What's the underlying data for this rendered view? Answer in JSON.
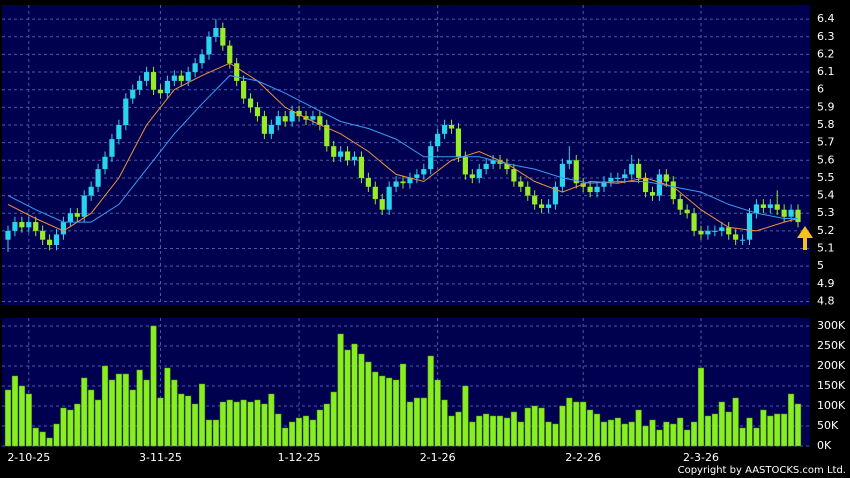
{
  "chart_data": [
    {
      "type": "candlestick",
      "categories": [
        null,
        null,
        null,
        "2-10-25",
        null,
        null,
        null,
        null,
        null,
        null,
        null,
        null,
        null,
        null,
        null,
        null,
        null,
        null,
        null,
        null,
        null,
        null,
        "3-11-25",
        null,
        null,
        null,
        null,
        null,
        null,
        null,
        null,
        null,
        null,
        null,
        null,
        null,
        null,
        null,
        null,
        null,
        null,
        null,
        "1-12-25",
        null,
        null,
        null,
        null,
        null,
        null,
        null,
        null,
        null,
        null,
        null,
        null,
        null,
        null,
        null,
        null,
        null,
        null,
        null,
        "2-1-26",
        null,
        null,
        null,
        null,
        null,
        null,
        null,
        null,
        null,
        null,
        null,
        null,
        null,
        null,
        null,
        null,
        null,
        null,
        null,
        null,
        "2-2-26",
        null,
        null,
        null,
        null,
        null,
        null,
        null,
        null,
        null,
        null,
        null,
        null,
        null,
        null,
        null,
        null,
        "2-3-26",
        null,
        null,
        null,
        null,
        null,
        null,
        null,
        null,
        null,
        null,
        null,
        null,
        null,
        null
      ],
      "open": [
        5.15,
        5.2,
        5.25,
        5.22,
        5.25,
        5.2,
        5.15,
        5.12,
        5.18,
        5.25,
        5.3,
        5.28,
        5.4,
        5.45,
        5.55,
        5.62,
        5.72,
        5.8,
        5.95,
        6.0,
        6.05,
        6.1,
        6.0,
        5.98,
        6.05,
        6.08,
        6.05,
        6.1,
        6.15,
        6.2,
        6.3,
        6.35,
        6.25,
        6.15,
        6.05,
        5.95,
        5.9,
        5.85,
        5.75,
        5.8,
        5.85,
        5.82,
        5.88,
        5.85,
        5.83,
        5.85,
        5.8,
        5.68,
        5.62,
        5.65,
        5.6,
        5.62,
        5.5,
        5.45,
        5.38,
        5.32,
        5.45,
        5.48,
        5.47,
        5.5,
        5.52,
        5.55,
        5.68,
        5.75,
        5.8,
        5.78,
        5.62,
        5.52,
        5.5,
        5.55,
        5.58,
        5.6,
        5.58,
        5.55,
        5.48,
        5.45,
        5.4,
        5.35,
        5.33,
        5.35,
        5.45,
        5.58,
        5.6,
        5.47,
        5.45,
        5.42,
        5.45,
        5.48,
        5.5,
        5.5,
        5.52,
        5.58,
        5.5,
        5.42,
        5.4,
        5.52,
        5.48,
        5.38,
        5.32,
        5.3,
        5.2,
        5.18,
        5.2,
        5.2,
        5.22,
        5.18,
        5.15,
        5.15,
        5.3,
        5.35,
        5.33,
        5.35,
        5.32,
        5.28,
        5.32
      ],
      "high": [
        5.23,
        5.28,
        5.28,
        5.28,
        5.28,
        5.23,
        5.18,
        5.21,
        5.28,
        5.33,
        5.33,
        5.43,
        5.48,
        5.58,
        5.65,
        5.75,
        5.83,
        5.98,
        6.03,
        6.08,
        6.13,
        6.13,
        6.03,
        6.08,
        6.11,
        6.11,
        6.13,
        6.18,
        6.23,
        6.33,
        6.4,
        6.38,
        6.28,
        6.18,
        6.08,
        5.98,
        5.93,
        5.88,
        5.83,
        5.88,
        5.88,
        5.91,
        5.91,
        5.88,
        5.88,
        5.88,
        5.83,
        5.71,
        5.68,
        5.68,
        5.65,
        5.65,
        5.53,
        5.48,
        5.41,
        5.48,
        5.51,
        5.51,
        5.53,
        5.55,
        5.58,
        5.71,
        5.78,
        5.83,
        5.83,
        5.81,
        5.65,
        5.55,
        5.58,
        5.61,
        5.63,
        5.63,
        5.61,
        5.58,
        5.51,
        5.48,
        5.43,
        5.38,
        5.38,
        5.48,
        5.61,
        5.68,
        5.63,
        5.5,
        5.48,
        5.48,
        5.51,
        5.53,
        5.53,
        5.55,
        5.63,
        5.61,
        5.53,
        5.45,
        5.55,
        5.55,
        5.51,
        5.41,
        5.35,
        5.33,
        5.23,
        5.23,
        5.23,
        5.25,
        5.25,
        5.21,
        5.18,
        5.33,
        5.38,
        5.38,
        5.38,
        5.43,
        5.35,
        5.35,
        5.35
      ],
      "low": [
        5.08,
        5.17,
        5.19,
        5.19,
        5.17,
        5.12,
        5.09,
        5.09,
        5.15,
        5.22,
        5.25,
        5.25,
        5.37,
        5.42,
        5.52,
        5.59,
        5.69,
        5.77,
        5.92,
        5.97,
        6.02,
        5.97,
        5.95,
        5.95,
        6.02,
        6.02,
        6.02,
        6.07,
        6.12,
        6.17,
        6.27,
        6.22,
        6.12,
        6.02,
        5.92,
        5.87,
        5.82,
        5.72,
        5.72,
        5.77,
        5.79,
        5.79,
        5.82,
        5.8,
        5.8,
        5.77,
        5.65,
        5.59,
        5.59,
        5.57,
        5.57,
        5.47,
        5.42,
        5.35,
        5.29,
        5.29,
        5.42,
        5.44,
        5.44,
        5.47,
        5.49,
        5.52,
        5.65,
        5.72,
        5.75,
        5.59,
        5.49,
        5.47,
        5.47,
        5.52,
        5.55,
        5.55,
        5.52,
        5.45,
        5.42,
        5.37,
        5.32,
        5.3,
        5.3,
        5.32,
        5.42,
        5.55,
        5.44,
        5.42,
        5.39,
        5.39,
        5.42,
        5.45,
        5.47,
        5.47,
        5.49,
        5.47,
        5.39,
        5.37,
        5.37,
        5.45,
        5.35,
        5.29,
        5.27,
        5.17,
        5.15,
        5.15,
        5.17,
        5.17,
        5.15,
        5.12,
        5.12,
        5.12,
        5.27,
        5.3,
        5.3,
        5.29,
        5.25,
        5.25,
        5.22
      ],
      "close": [
        5.2,
        5.25,
        5.22,
        5.25,
        5.2,
        5.15,
        5.12,
        5.18,
        5.25,
        5.3,
        5.28,
        5.4,
        5.45,
        5.55,
        5.62,
        5.72,
        5.8,
        5.95,
        6.0,
        6.05,
        6.1,
        6.0,
        5.98,
        6.05,
        6.08,
        6.05,
        6.1,
        6.15,
        6.2,
        6.3,
        6.35,
        6.25,
        6.15,
        6.05,
        5.95,
        5.9,
        5.85,
        5.75,
        5.8,
        5.85,
        5.82,
        5.88,
        5.85,
        5.83,
        5.85,
        5.8,
        5.68,
        5.62,
        5.65,
        5.6,
        5.62,
        5.5,
        5.45,
        5.38,
        5.32,
        5.45,
        5.48,
        5.47,
        5.5,
        5.52,
        5.55,
        5.68,
        5.75,
        5.8,
        5.78,
        5.62,
        5.52,
        5.5,
        5.55,
        5.58,
        5.6,
        5.58,
        5.55,
        5.48,
        5.45,
        5.4,
        5.35,
        5.33,
        5.35,
        5.45,
        5.58,
        5.6,
        5.47,
        5.45,
        5.42,
        5.45,
        5.48,
        5.5,
        5.5,
        5.52,
        5.58,
        5.5,
        5.42,
        5.4,
        5.52,
        5.48,
        5.38,
        5.32,
        5.3,
        5.2,
        5.18,
        5.2,
        5.2,
        5.22,
        5.18,
        5.15,
        5.15,
        5.3,
        5.35,
        5.33,
        5.35,
        5.32,
        5.28,
        5.32,
        5.25
      ],
      "up_color": "#2ad4ec",
      "down_color": "#96ec26",
      "series": [
        {
          "color": "#f0923a",
          "x": [
            0,
            4,
            8,
            12,
            16,
            20,
            24,
            28,
            32,
            36,
            40,
            44,
            48,
            52,
            56,
            60,
            64,
            68,
            72,
            76,
            80,
            84,
            88,
            92,
            96,
            100,
            104,
            108,
            112,
            114
          ],
          "values": [
            5.35,
            5.27,
            5.2,
            5.3,
            5.5,
            5.8,
            6.0,
            6.08,
            6.15,
            6.05,
            5.9,
            5.82,
            5.75,
            5.65,
            5.52,
            5.48,
            5.6,
            5.65,
            5.58,
            5.48,
            5.42,
            5.48,
            5.47,
            5.5,
            5.45,
            5.32,
            5.22,
            5.2,
            5.25,
            5.27
          ]
        },
        {
          "color": "#3a9cf0",
          "x": [
            0,
            4,
            8,
            12,
            16,
            20,
            24,
            28,
            32,
            36,
            40,
            44,
            48,
            52,
            56,
            60,
            64,
            68,
            72,
            76,
            80,
            84,
            88,
            92,
            96,
            100,
            104,
            108,
            112,
            114
          ],
          "values": [
            5.4,
            5.32,
            5.25,
            5.25,
            5.35,
            5.55,
            5.75,
            5.92,
            6.08,
            6.05,
            5.98,
            5.9,
            5.82,
            5.78,
            5.72,
            5.62,
            5.62,
            5.62,
            5.58,
            5.55,
            5.5,
            5.47,
            5.48,
            5.48,
            5.45,
            5.42,
            5.35,
            5.3,
            5.27,
            5.27
          ]
        }
      ],
      "ylim": [
        4.78,
        6.48
      ],
      "yticks": [
        4.8,
        4.9,
        {
          "value": 5,
          "label": "5"
        },
        5.1,
        5.2,
        5.3,
        5.4,
        5.5,
        5.6,
        5.7,
        5.8,
        5.9,
        {
          "value": 6,
          "label": "6"
        },
        6.1,
        6.2,
        6.3,
        6.4
      ],
      "grid": true
    },
    {
      "type": "bar",
      "values": [
        140000,
        175000,
        150000,
        130000,
        45000,
        35000,
        20000,
        55000,
        95000,
        90000,
        105000,
        170000,
        140000,
        115000,
        200000,
        165000,
        180000,
        180000,
        140000,
        190000,
        165000,
        300000,
        120000,
        195000,
        165000,
        130000,
        125000,
        105000,
        155000,
        65000,
        65000,
        110000,
        115000,
        110000,
        115000,
        110000,
        115000,
        105000,
        130000,
        80000,
        45000,
        60000,
        70000,
        75000,
        65000,
        90000,
        105000,
        135000,
        280000,
        240000,
        255000,
        230000,
        210000,
        185000,
        175000,
        170000,
        165000,
        205000,
        110000,
        120000,
        120000,
        225000,
        165000,
        115000,
        75000,
        85000,
        150000,
        60000,
        75000,
        80000,
        75000,
        75000,
        70000,
        85000,
        60000,
        95000,
        100000,
        95000,
        60000,
        55000,
        100000,
        120000,
        110000,
        110000,
        90000,
        80000,
        60000,
        65000,
        70000,
        55000,
        60000,
        90000,
        50000,
        65000,
        40000,
        60000,
        55000,
        70000,
        40000,
        60000,
        195000,
        75000,
        80000,
        110000,
        85000,
        120000,
        45000,
        70000,
        45000,
        90000,
        75000,
        80000,
        80000,
        130000,
        105000
      ],
      "color": "#88ee22",
      "ylim": [
        0,
        320000
      ],
      "yticks": [
        {
          "value": 0,
          "label": "0K"
        },
        {
          "value": 50000,
          "label": "50K"
        },
        {
          "value": 100000,
          "label": "100K"
        },
        {
          "value": 150000,
          "label": "150K"
        },
        {
          "value": 200000,
          "label": "200K"
        },
        {
          "value": 250000,
          "label": "250K"
        },
        {
          "value": 300000,
          "label": "300K"
        }
      ],
      "grid": true,
      "copyright": "Copyright by AASTOCKS.com Ltd."
    }
  ]
}
